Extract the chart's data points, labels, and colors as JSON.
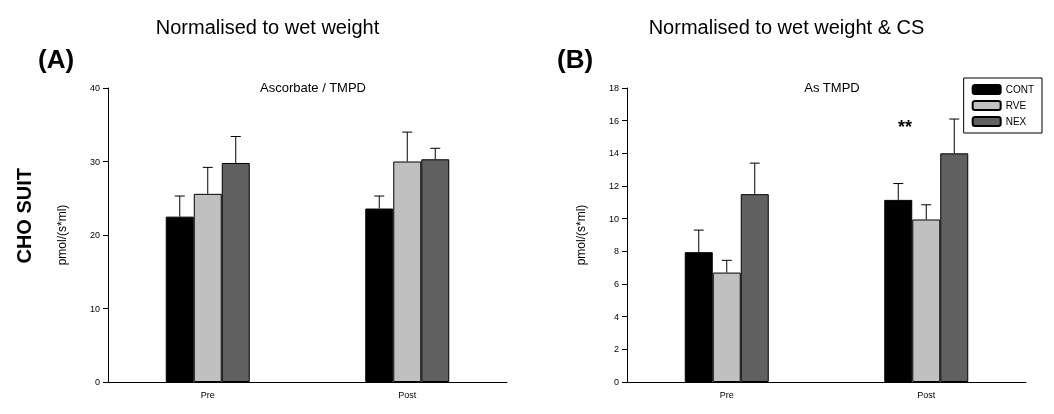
{
  "chart_data": [
    {
      "type": "bar",
      "title": "Normalised to wet weight",
      "subtitle": "Ascorbate / TMPD",
      "ylabel": "pmol/(s*ml)",
      "annotations": [
        "(A)",
        "CHO SUIT"
      ],
      "categories": [
        "Pre",
        "Post"
      ],
      "series": [
        {
          "color": "#000000",
          "values": [
            22.5,
            23.6
          ],
          "errors": [
            2.8,
            1.7
          ]
        },
        {
          "color": "#c0c0c0",
          "values": [
            25.6,
            30.0
          ],
          "errors": [
            3.6,
            4.0
          ]
        },
        {
          "color": "#606060",
          "values": [
            29.8,
            30.3
          ],
          "errors": [
            3.6,
            1.5
          ]
        }
      ],
      "ylim": [
        0,
        40
      ],
      "yticks": [
        0,
        10,
        20,
        30,
        40
      ],
      "grid": false,
      "legend": false
    },
    {
      "type": "bar",
      "title": "Normalised to wet weight & CS",
      "subtitle": "As TMPD",
      "ylabel": "pmol/(s*ml)",
      "annotations": [
        "(B)",
        "**"
      ],
      "categories": [
        "Pre",
        "Post"
      ],
      "series": [
        {
          "name": "CONT",
          "color": "#000000",
          "values": [
            7.95,
            11.15
          ],
          "errors": [
            1.35,
            1.0
          ]
        },
        {
          "name": "RVE",
          "color": "#c0c0c0",
          "values": [
            6.7,
            9.95
          ],
          "errors": [
            0.75,
            0.9
          ]
        },
        {
          "name": "NEX",
          "color": "#606060",
          "values": [
            11.5,
            14.0
          ],
          "errors": [
            1.9,
            2.1
          ]
        }
      ],
      "ylim": [
        0,
        18
      ],
      "yticks": [
        0,
        2,
        4,
        6,
        8,
        10,
        12,
        14,
        16,
        18
      ],
      "grid": false,
      "legend": "top right"
    }
  ]
}
